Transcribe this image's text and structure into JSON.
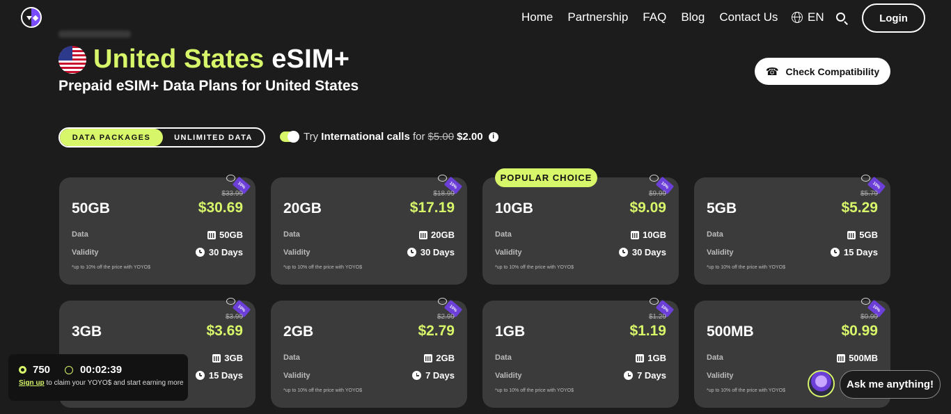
{
  "nav": {
    "links": [
      "Home",
      "Partnership",
      "FAQ",
      "Blog",
      "Contact Us"
    ],
    "lang": "EN",
    "login": "Login"
  },
  "hero": {
    "country": "United States",
    "product": "eSIM+",
    "subtitle": "Prepaid eSIM+ Data Plans for United States",
    "check_btn": "Check Compatibility"
  },
  "toggle": {
    "tabs": [
      "DATA PACKAGES",
      "UNLIMITED DATA"
    ],
    "intl_prefix": "Try",
    "intl_bold": "International calls",
    "intl_for": "for",
    "intl_old": "$5.00",
    "intl_new": "$2.00"
  },
  "popular_label": "POPULAR CHOICE",
  "discount_label": "10%",
  "labels": {
    "data": "Data",
    "validity": "Validity",
    "note": "*up to 10% off the price with YOYO$"
  },
  "plans": [
    {
      "name": "50GB",
      "old": "$33.99",
      "price": "$30.69",
      "data": "50GB",
      "validity": "30 Days"
    },
    {
      "name": "20GB",
      "old": "$18.99",
      "price": "$17.19",
      "data": "20GB",
      "validity": "30 Days"
    },
    {
      "name": "10GB",
      "old": "$9.99",
      "price": "$9.09",
      "data": "10GB",
      "validity": "30 Days"
    },
    {
      "name": "5GB",
      "old": "$5.79",
      "price": "$5.29",
      "data": "5GB",
      "validity": "15 Days"
    },
    {
      "name": "3GB",
      "old": "$3.99",
      "price": "$3.69",
      "data": "3GB",
      "validity": "15 Days"
    },
    {
      "name": "2GB",
      "old": "$2.99",
      "price": "$2.79",
      "data": "2GB",
      "validity": "7 Days"
    },
    {
      "name": "1GB",
      "old": "$1.29",
      "price": "$1.19",
      "data": "1GB",
      "validity": "7 Days"
    },
    {
      "name": "500MB",
      "old": "$0.99",
      "price": "$0.99",
      "data": "500MB",
      "validity": ""
    }
  ],
  "rewards": {
    "points": "750",
    "timer": "00:02:39",
    "signup": "Sign up",
    "message": "to claim your YOYO$ and start earning more"
  },
  "chat": {
    "label": "Ask me anything!"
  },
  "colors": {
    "accent": "#d8f66a",
    "bg": "#1c1c1c",
    "card": "#3b3b3b",
    "tag": "#6b3fd8"
  }
}
